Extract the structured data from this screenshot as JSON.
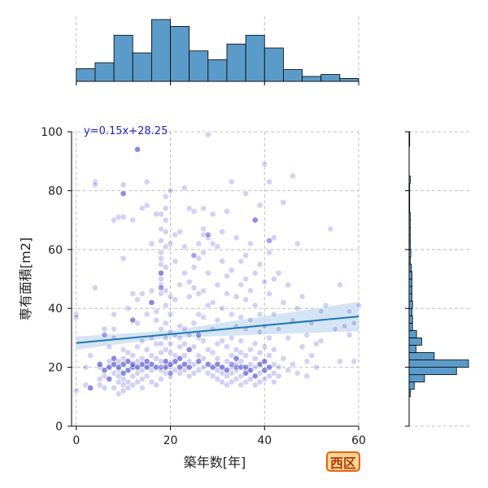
{
  "chart_data": {
    "type": "scatter",
    "xlabel": "築年数[年]",
    "ylabel": "専有面積[m2]",
    "xlim": [
      -1,
      60
    ],
    "ylim": [
      0,
      100
    ],
    "x_ticks": [
      0,
      20,
      40,
      60
    ],
    "y_ticks": [
      0,
      20,
      40,
      60,
      80,
      100
    ],
    "grid": true,
    "regression": {
      "label": "y=0.15x+28.25",
      "slope": 0.15,
      "intercept": 28.25,
      "color": "#1f77b4",
      "band_color": "#c6dbef"
    },
    "point_color": "#3333cc",
    "hist_color": "#5b9bc9",
    "x_hist": {
      "bins": [
        0,
        4,
        8,
        12,
        16,
        20,
        24,
        28,
        32,
        36,
        40,
        44,
        48,
        52,
        56,
        60
      ],
      "counts": [
        13,
        19,
        47,
        29,
        63,
        56,
        31,
        22,
        38,
        47,
        34,
        12,
        5,
        7,
        3
      ]
    },
    "y_hist": {
      "bins": [
        10,
        12.5,
        15,
        17.5,
        20,
        22.5,
        25,
        27.5,
        30,
        32.5,
        35,
        37.5,
        40,
        42.5,
        45,
        47.5,
        50,
        52.5,
        55,
        57.5,
        60,
        62.5,
        65,
        67.5,
        70,
        72.5,
        75,
        77.5,
        80,
        82.5,
        85,
        87.5,
        90,
        92.5,
        95,
        97.5,
        100
      ],
      "counts": [
        2,
        9,
        27,
        83,
        104,
        44,
        12,
        22,
        13,
        6,
        6,
        5,
        6,
        5,
        5,
        5,
        5,
        4,
        2,
        3,
        2,
        2,
        2,
        2,
        2,
        1,
        1,
        1,
        1,
        2,
        0,
        0,
        0,
        0,
        1,
        1
      ]
    },
    "points": [
      [
        0,
        38
      ],
      [
        0,
        37
      ],
      [
        0,
        12
      ],
      [
        2,
        14
      ],
      [
        2,
        20
      ],
      [
        3,
        13
      ],
      [
        3,
        24
      ],
      [
        4,
        47
      ],
      [
        4,
        83
      ],
      [
        4,
        82
      ],
      [
        5,
        20
      ],
      [
        5,
        14
      ],
      [
        5,
        16
      ],
      [
        5,
        21
      ],
      [
        6,
        33
      ],
      [
        6,
        19
      ],
      [
        6,
        17
      ],
      [
        6,
        13
      ],
      [
        7,
        16
      ],
      [
        7,
        20
      ],
      [
        7,
        22
      ],
      [
        7,
        27
      ],
      [
        8,
        13
      ],
      [
        8,
        18
      ],
      [
        8,
        21
      ],
      [
        8,
        23
      ],
      [
        8,
        30
      ],
      [
        8,
        33
      ],
      [
        8,
        38
      ],
      [
        8,
        70
      ],
      [
        9,
        11
      ],
      [
        9,
        15
      ],
      [
        9,
        17
      ],
      [
        9,
        19
      ],
      [
        9,
        20
      ],
      [
        9,
        22
      ],
      [
        9,
        71
      ],
      [
        10,
        12
      ],
      [
        10,
        14
      ],
      [
        10,
        16
      ],
      [
        10,
        18
      ],
      [
        10,
        21
      ],
      [
        10,
        23
      ],
      [
        10,
        26
      ],
      [
        10,
        57
      ],
      [
        10,
        71
      ],
      [
        10,
        82
      ],
      [
        10,
        79
      ],
      [
        11,
        13
      ],
      [
        11,
        15
      ],
      [
        11,
        19
      ],
      [
        11,
        22
      ],
      [
        11,
        25
      ],
      [
        11,
        40
      ],
      [
        12,
        14
      ],
      [
        12,
        17
      ],
      [
        12,
        20
      ],
      [
        12,
        21
      ],
      [
        12,
        24
      ],
      [
        12,
        36
      ],
      [
        12,
        45
      ],
      [
        12,
        70
      ],
      [
        13,
        15
      ],
      [
        13,
        18
      ],
      [
        13,
        20
      ],
      [
        13,
        22
      ],
      [
        13,
        27
      ],
      [
        13,
        35
      ],
      [
        13,
        43
      ],
      [
        13,
        94
      ],
      [
        14,
        13
      ],
      [
        14,
        16
      ],
      [
        14,
        19
      ],
      [
        14,
        21
      ],
      [
        14,
        23
      ],
      [
        14,
        29
      ],
      [
        14,
        45
      ],
      [
        14,
        74
      ],
      [
        15,
        17
      ],
      [
        15,
        20
      ],
      [
        15,
        22
      ],
      [
        15,
        26
      ],
      [
        15,
        38
      ],
      [
        15,
        83
      ],
      [
        15,
        75
      ],
      [
        16,
        15
      ],
      [
        16,
        19
      ],
      [
        16,
        21
      ],
      [
        16,
        24
      ],
      [
        16,
        30
      ],
      [
        16,
        42
      ],
      [
        16,
        46
      ],
      [
        16,
        62
      ],
      [
        17,
        14
      ],
      [
        17,
        20
      ],
      [
        17,
        23
      ],
      [
        17,
        28
      ],
      [
        17,
        36
      ],
      [
        17,
        72
      ],
      [
        17,
        39
      ],
      [
        18,
        16
      ],
      [
        18,
        19
      ],
      [
        18,
        22
      ],
      [
        18,
        25
      ],
      [
        18,
        28
      ],
      [
        18,
        33
      ],
      [
        18,
        45
      ],
      [
        18,
        50
      ],
      [
        18,
        55
      ],
      [
        18,
        59
      ],
      [
        18,
        63
      ],
      [
        18,
        67
      ],
      [
        18,
        72
      ],
      [
        18,
        52
      ],
      [
        18,
        57
      ],
      [
        18,
        48
      ],
      [
        19,
        18
      ],
      [
        19,
        20
      ],
      [
        19,
        22
      ],
      [
        19,
        26
      ],
      [
        19,
        30
      ],
      [
        19,
        35
      ],
      [
        19,
        41
      ],
      [
        19,
        46
      ],
      [
        19,
        54
      ],
      [
        19,
        61
      ],
      [
        19,
        66
      ],
      [
        19,
        70
      ],
      [
        19,
        74
      ],
      [
        19,
        78
      ],
      [
        20,
        17
      ],
      [
        20,
        20
      ],
      [
        20,
        21
      ],
      [
        20,
        25
      ],
      [
        20,
        28
      ],
      [
        20,
        32
      ],
      [
        20,
        38
      ],
      [
        20,
        44
      ],
      [
        20,
        80
      ],
      [
        20,
        62
      ],
      [
        21,
        19
      ],
      [
        21,
        22
      ],
      [
        21,
        24
      ],
      [
        21,
        31
      ],
      [
        21,
        43
      ],
      [
        21,
        56
      ],
      [
        21,
        65
      ],
      [
        22,
        18
      ],
      [
        22,
        20
      ],
      [
        22,
        23
      ],
      [
        22,
        27
      ],
      [
        22,
        30
      ],
      [
        22,
        34
      ],
      [
        22,
        48
      ],
      [
        22,
        66
      ],
      [
        23,
        19
      ],
      [
        23,
        21
      ],
      [
        23,
        24
      ],
      [
        23,
        28
      ],
      [
        23,
        33
      ],
      [
        23,
        52
      ],
      [
        23,
        61
      ],
      [
        23,
        81
      ],
      [
        24,
        17
      ],
      [
        24,
        20
      ],
      [
        24,
        22
      ],
      [
        24,
        26
      ],
      [
        24,
        31
      ],
      [
        24,
        44
      ],
      [
        24,
        49
      ],
      [
        24,
        74
      ],
      [
        25,
        18
      ],
      [
        25,
        21
      ],
      [
        25,
        27
      ],
      [
        25,
        35
      ],
      [
        25,
        47
      ],
      [
        25,
        54
      ],
      [
        25,
        73
      ],
      [
        26,
        19
      ],
      [
        26,
        22
      ],
      [
        26,
        24
      ],
      [
        26,
        30
      ],
      [
        26,
        38
      ],
      [
        26,
        45
      ],
      [
        26,
        57
      ],
      [
        26,
        62
      ],
      [
        27,
        20
      ],
      [
        27,
        23
      ],
      [
        27,
        29
      ],
      [
        27,
        37
      ],
      [
        27,
        46
      ],
      [
        27,
        59
      ],
      [
        27,
        65
      ],
      [
        27,
        67
      ],
      [
        27,
        74
      ],
      [
        28,
        18
      ],
      [
        28,
        21
      ],
      [
        28,
        26
      ],
      [
        28,
        41
      ],
      [
        28,
        52
      ],
      [
        28,
        64
      ],
      [
        28,
        99
      ],
      [
        29,
        17
      ],
      [
        29,
        20
      ],
      [
        29,
        25
      ],
      [
        29,
        33
      ],
      [
        29,
        42
      ],
      [
        29,
        62
      ],
      [
        29,
        72
      ],
      [
        30,
        16
      ],
      [
        30,
        19
      ],
      [
        30,
        21
      ],
      [
        30,
        23
      ],
      [
        30,
        28
      ],
      [
        30,
        36
      ],
      [
        30,
        48
      ],
      [
        30,
        61
      ],
      [
        31,
        15
      ],
      [
        31,
        18
      ],
      [
        31,
        20
      ],
      [
        31,
        29
      ],
      [
        31,
        40
      ],
      [
        31,
        56
      ],
      [
        31,
        66
      ],
      [
        32,
        14
      ],
      [
        32,
        17
      ],
      [
        32,
        19
      ],
      [
        32,
        22
      ],
      [
        32,
        27
      ],
      [
        32,
        45
      ],
      [
        32,
        51
      ],
      [
        32,
        73
      ],
      [
        33,
        15
      ],
      [
        33,
        18
      ],
      [
        33,
        20
      ],
      [
        33,
        24
      ],
      [
        33,
        30
      ],
      [
        33,
        38
      ],
      [
        33,
        53
      ],
      [
        33,
        83
      ],
      [
        34,
        16
      ],
      [
        34,
        19
      ],
      [
        34,
        21
      ],
      [
        34,
        23
      ],
      [
        34,
        26
      ],
      [
        34,
        34
      ],
      [
        34,
        44
      ],
      [
        34,
        64
      ],
      [
        35,
        14
      ],
      [
        35,
        17
      ],
      [
        35,
        20
      ],
      [
        35,
        22
      ],
      [
        35,
        25
      ],
      [
        35,
        29
      ],
      [
        35,
        37
      ],
      [
        35,
        48
      ],
      [
        35,
        56
      ],
      [
        36,
        15
      ],
      [
        36,
        18
      ],
      [
        36,
        20
      ],
      [
        36,
        24
      ],
      [
        36,
        33
      ],
      [
        36,
        43
      ],
      [
        36,
        50
      ],
      [
        36,
        58
      ],
      [
        36,
        79
      ],
      [
        37,
        16
      ],
      [
        37,
        19
      ],
      [
        37,
        21
      ],
      [
        37,
        26
      ],
      [
        37,
        36
      ],
      [
        37,
        46
      ],
      [
        37,
        62
      ],
      [
        38,
        14
      ],
      [
        38,
        17
      ],
      [
        38,
        20
      ],
      [
        38,
        23
      ],
      [
        38,
        28
      ],
      [
        38,
        41
      ],
      [
        38,
        52
      ],
      [
        38,
        70
      ],
      [
        39,
        15
      ],
      [
        39,
        18
      ],
      [
        39,
        21
      ],
      [
        39,
        25
      ],
      [
        39,
        32
      ],
      [
        39,
        38
      ],
      [
        39,
        55
      ],
      [
        39,
        75
      ],
      [
        40,
        16
      ],
      [
        40,
        19
      ],
      [
        40,
        22
      ],
      [
        40,
        27
      ],
      [
        40,
        34
      ],
      [
        40,
        49
      ],
      [
        40,
        89
      ],
      [
        41,
        17
      ],
      [
        41,
        20
      ],
      [
        41,
        24
      ],
      [
        41,
        30
      ],
      [
        41,
        45
      ],
      [
        41,
        59
      ],
      [
        41,
        83
      ],
      [
        42,
        15
      ],
      [
        42,
        18
      ],
      [
        42,
        21
      ],
      [
        42,
        26
      ],
      [
        42,
        38
      ],
      [
        42,
        50
      ],
      [
        42,
        64
      ],
      [
        43,
        17
      ],
      [
        43,
        20
      ],
      [
        43,
        33
      ],
      [
        43,
        52
      ],
      [
        44,
        23
      ],
      [
        44,
        42
      ],
      [
        44,
        76
      ],
      [
        45,
        19
      ],
      [
        45,
        30
      ],
      [
        45,
        48
      ],
      [
        46,
        21
      ],
      [
        46,
        36
      ],
      [
        46,
        85
      ],
      [
        47,
        18
      ],
      [
        47,
        40
      ],
      [
        47,
        62
      ],
      [
        48,
        27
      ],
      [
        48,
        44
      ],
      [
        49,
        22
      ],
      [
        49,
        31
      ],
      [
        49,
        17
      ],
      [
        50,
        24
      ],
      [
        50,
        35
      ],
      [
        51,
        28
      ],
      [
        51,
        20
      ],
      [
        52,
        29
      ],
      [
        52,
        39
      ],
      [
        53,
        41
      ],
      [
        54,
        67
      ],
      [
        55,
        33
      ],
      [
        56,
        22
      ],
      [
        56,
        48
      ],
      [
        57,
        34
      ],
      [
        58,
        31
      ],
      [
        58,
        39
      ],
      [
        59,
        22
      ],
      [
        59,
        35
      ],
      [
        60,
        41
      ]
    ],
    "dense_points": [
      [
        3,
        13
      ],
      [
        5,
        21
      ],
      [
        6,
        19
      ],
      [
        7,
        20
      ],
      [
        8,
        21
      ],
      [
        9,
        20
      ],
      [
        10,
        21
      ],
      [
        10,
        18
      ],
      [
        11,
        19
      ],
      [
        12,
        20
      ],
      [
        12,
        21
      ],
      [
        13,
        20
      ],
      [
        14,
        21
      ],
      [
        15,
        20
      ],
      [
        16,
        21
      ],
      [
        17,
        20
      ],
      [
        18,
        20
      ],
      [
        19,
        20
      ],
      [
        20,
        21
      ],
      [
        21,
        22
      ],
      [
        22,
        20
      ],
      [
        23,
        21
      ],
      [
        24,
        20
      ],
      [
        18,
        47
      ],
      [
        18,
        52
      ],
      [
        19,
        22
      ],
      [
        20,
        18
      ],
      [
        26,
        22
      ],
      [
        28,
        21
      ],
      [
        29,
        20
      ],
      [
        30,
        21
      ],
      [
        31,
        20
      ],
      [
        32,
        19
      ],
      [
        33,
        21
      ],
      [
        34,
        20
      ],
      [
        35,
        20
      ],
      [
        36,
        18
      ],
      [
        37,
        19
      ],
      [
        38,
        17
      ],
      [
        39,
        21
      ],
      [
        40,
        19
      ],
      [
        41,
        20
      ],
      [
        10,
        79
      ],
      [
        13,
        94
      ],
      [
        28,
        65
      ],
      [
        38,
        70
      ],
      [
        41,
        63
      ],
      [
        25,
        58
      ],
      [
        26,
        31
      ],
      [
        12,
        36
      ],
      [
        16,
        42
      ],
      [
        6,
        31
      ],
      [
        8,
        23
      ],
      [
        22,
        23
      ],
      [
        24,
        26
      ],
      [
        34,
        23
      ],
      [
        36,
        20
      ],
      [
        40,
        22
      ],
      [
        15,
        22
      ],
      [
        11,
        22
      ],
      [
        7,
        16
      ]
    ]
  },
  "badge": {
    "label": "西区",
    "fill": "#fcd59a",
    "border": "#e8620b",
    "text_color": "#b03a00"
  }
}
